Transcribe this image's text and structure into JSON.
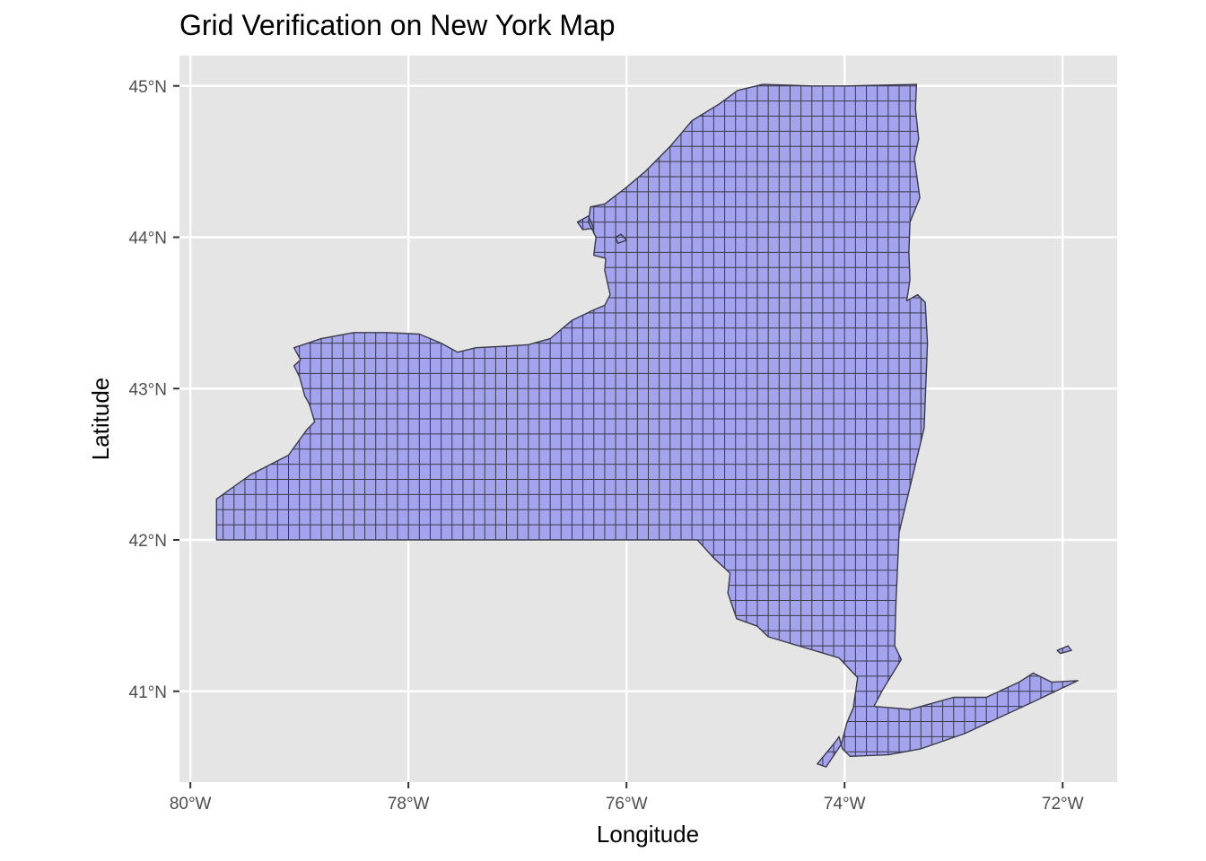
{
  "chart_data": {
    "type": "map",
    "title": "Grid Verification on New York Map",
    "xlabel": "Longitude",
    "ylabel": "Latitude",
    "xlim": [
      -80.1,
      -71.5
    ],
    "ylim": [
      40.4,
      45.2
    ],
    "x_ticks": [
      {
        "value": -80,
        "label": "80°W"
      },
      {
        "value": -78,
        "label": "78°W"
      },
      {
        "value": -76,
        "label": "76°W"
      },
      {
        "value": -74,
        "label": "74°W"
      },
      {
        "value": -72,
        "label": "72°W"
      }
    ],
    "y_ticks": [
      {
        "value": 41,
        "label": "41°N"
      },
      {
        "value": 42,
        "label": "42°N"
      },
      {
        "value": 43,
        "label": "43°N"
      },
      {
        "value": 44,
        "label": "44°N"
      },
      {
        "value": 45,
        "label": "45°N"
      }
    ],
    "grid_cell_size_deg": 0.1,
    "fill_color": "#a3a3ee",
    "stroke_color": "#3a3a4a",
    "panel_bg": "#e5e5e5",
    "grid_line_color": "#ffffff",
    "state_outline": [
      [
        -79.76,
        42.0
      ],
      [
        -79.76,
        42.27
      ],
      [
        -79.45,
        42.43
      ],
      [
        -79.1,
        42.56
      ],
      [
        -78.93,
        42.73
      ],
      [
        -78.86,
        42.78
      ],
      [
        -78.91,
        42.9
      ],
      [
        -78.95,
        42.95
      ],
      [
        -79.0,
        43.08
      ],
      [
        -79.05,
        43.15
      ],
      [
        -78.99,
        43.19
      ],
      [
        -79.05,
        43.27
      ],
      [
        -78.8,
        43.33
      ],
      [
        -78.5,
        43.37
      ],
      [
        -78.2,
        43.37
      ],
      [
        -77.9,
        43.36
      ],
      [
        -77.7,
        43.3
      ],
      [
        -77.55,
        43.24
      ],
      [
        -77.38,
        43.27
      ],
      [
        -77.1,
        43.28
      ],
      [
        -76.9,
        43.29
      ],
      [
        -76.7,
        43.33
      ],
      [
        -76.5,
        43.45
      ],
      [
        -76.3,
        43.52
      ],
      [
        -76.2,
        43.55
      ],
      [
        -76.15,
        43.62
      ],
      [
        -76.2,
        43.78
      ],
      [
        -76.19,
        43.86
      ],
      [
        -76.3,
        43.88
      ],
      [
        -76.28,
        44.0
      ],
      [
        -76.35,
        44.1
      ],
      [
        -76.33,
        44.2
      ],
      [
        -76.2,
        44.22
      ],
      [
        -76.0,
        44.33
      ],
      [
        -75.82,
        44.44
      ],
      [
        -75.6,
        44.6
      ],
      [
        -75.4,
        44.77
      ],
      [
        -75.15,
        44.88
      ],
      [
        -74.98,
        44.97
      ],
      [
        -74.75,
        45.01
      ],
      [
        -74.3,
        45.0
      ],
      [
        -74.0,
        45.0
      ],
      [
        -73.34,
        45.01
      ],
      [
        -73.35,
        44.85
      ],
      [
        -73.32,
        44.65
      ],
      [
        -73.36,
        44.52
      ],
      [
        -73.31,
        44.26
      ],
      [
        -73.4,
        44.1
      ],
      [
        -73.41,
        43.9
      ],
      [
        -73.4,
        43.72
      ],
      [
        -73.43,
        43.58
      ],
      [
        -73.33,
        43.62
      ],
      [
        -73.26,
        43.57
      ],
      [
        -73.24,
        43.3
      ],
      [
        -73.27,
        42.74
      ],
      [
        -73.5,
        42.05
      ],
      [
        -73.53,
        41.56
      ],
      [
        -73.54,
        41.3
      ],
      [
        -73.48,
        41.21
      ],
      [
        -73.65,
        41.01
      ],
      [
        -73.73,
        40.9
      ],
      [
        -73.4,
        40.88
      ],
      [
        -73.0,
        40.96
      ],
      [
        -72.7,
        40.96
      ],
      [
        -72.4,
        41.06
      ],
      [
        -72.27,
        41.12
      ],
      [
        -72.1,
        41.06
      ],
      [
        -71.86,
        41.07
      ],
      [
        -72.3,
        40.92
      ],
      [
        -72.9,
        40.72
      ],
      [
        -73.3,
        40.62
      ],
      [
        -73.6,
        40.58
      ],
      [
        -73.95,
        40.57
      ],
      [
        -74.02,
        40.62
      ],
      [
        -74.05,
        40.7
      ],
      [
        -74.09,
        40.66
      ],
      [
        -74.25,
        40.52
      ],
      [
        -74.17,
        40.5
      ],
      [
        -74.03,
        40.65
      ],
      [
        -73.98,
        40.79
      ],
      [
        -73.92,
        40.89
      ],
      [
        -73.88,
        41.09
      ],
      [
        -74.05,
        41.22
      ],
      [
        -74.7,
        41.36
      ],
      [
        -74.8,
        41.43
      ],
      [
        -74.99,
        41.48
      ],
      [
        -75.07,
        41.65
      ],
      [
        -75.05,
        41.78
      ],
      [
        -75.2,
        41.88
      ],
      [
        -75.35,
        42.0
      ],
      [
        -76.5,
        42.0
      ],
      [
        -77.5,
        42.0
      ],
      [
        -78.5,
        42.0
      ],
      [
        -79.76,
        42.0
      ]
    ],
    "islands": [
      [
        [
          -76.45,
          44.1
        ],
        [
          -76.35,
          44.14
        ],
        [
          -76.3,
          44.06
        ],
        [
          -76.4,
          44.05
        ],
        [
          -76.45,
          44.1
        ]
      ],
      [
        [
          -76.1,
          44.0
        ],
        [
          -76.05,
          44.02
        ],
        [
          -76.0,
          43.98
        ],
        [
          -76.08,
          43.96
        ],
        [
          -76.1,
          44.0
        ]
      ],
      [
        [
          -72.05,
          41.27
        ],
        [
          -71.95,
          41.3
        ],
        [
          -71.92,
          41.27
        ],
        [
          -72.02,
          41.25
        ],
        [
          -72.05,
          41.27
        ]
      ]
    ]
  }
}
